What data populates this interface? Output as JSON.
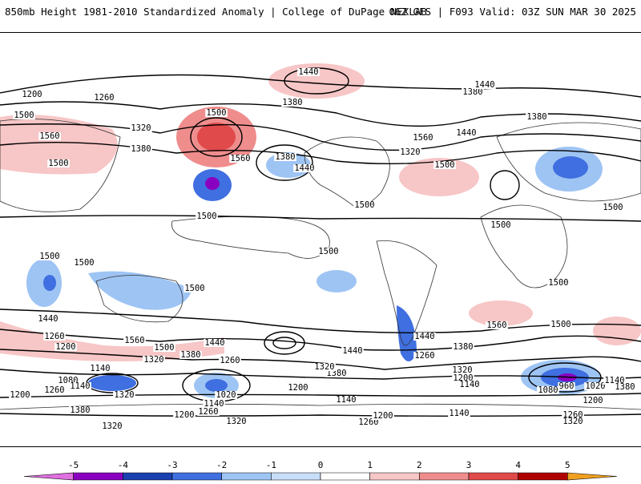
{
  "header": {
    "title": "850mb Height 1981-2010 Standardized Anomaly | College of DuPage NEXLAB",
    "run_info": "06Z GFS | F093 Valid: 03Z SUN MAR 30 2025"
  },
  "colorbar": {
    "ticks": [
      "-5",
      "-4",
      "-3",
      "-2",
      "-1",
      "0",
      "1",
      "2",
      "3",
      "4",
      "5"
    ],
    "colors": [
      "#e070e0",
      "#8a00c0",
      "#1a3fb0",
      "#3f6fe0",
      "#9ec4f4",
      "#c8def8",
      "#ffffff",
      "#f7c6c6",
      "#ef8d8d",
      "#e04a4a",
      "#b00000",
      "#f0a020"
    ]
  },
  "contour_labels": [
    {
      "text": "1200"
    },
    {
      "text": "1260"
    },
    {
      "text": "1440"
    },
    {
      "text": "1380"
    },
    {
      "text": "1500"
    },
    {
      "text": "1320"
    },
    {
      "text": "1560"
    },
    {
      "text": "1380"
    },
    {
      "text": "1500"
    },
    {
      "text": "1500"
    },
    {
      "text": "1560"
    },
    {
      "text": "1380"
    },
    {
      "text": "1440"
    },
    {
      "text": "1380"
    },
    {
      "text": "1440"
    },
    {
      "text": "1440"
    },
    {
      "text": "1320"
    },
    {
      "text": "1500"
    },
    {
      "text": "1560"
    },
    {
      "text": "1380"
    },
    {
      "text": "1500"
    },
    {
      "text": "1500"
    },
    {
      "text": "1500"
    },
    {
      "text": "1500"
    },
    {
      "text": "1500"
    },
    {
      "text": "1500"
    },
    {
      "text": "1500"
    },
    {
      "text": "1500"
    },
    {
      "text": "1500"
    },
    {
      "text": "1440"
    },
    {
      "text": "1260"
    },
    {
      "text": "1200"
    },
    {
      "text": "1560"
    },
    {
      "text": "1500"
    },
    {
      "text": "1380"
    },
    {
      "text": "1320"
    },
    {
      "text": "1440"
    },
    {
      "text": "1260"
    },
    {
      "text": "1440"
    },
    {
      "text": "1380"
    },
    {
      "text": "1320"
    },
    {
      "text": "1260"
    },
    {
      "text": "1560"
    },
    {
      "text": "1500"
    },
    {
      "text": "1440"
    },
    {
      "text": "1380"
    },
    {
      "text": "1320"
    },
    {
      "text": "1200"
    },
    {
      "text": "1140"
    },
    {
      "text": "1140"
    },
    {
      "text": "1080"
    },
    {
      "text": "1140"
    },
    {
      "text": "1260"
    },
    {
      "text": "1200"
    },
    {
      "text": "1320"
    },
    {
      "text": "1020"
    },
    {
      "text": "1140"
    },
    {
      "text": "1200"
    },
    {
      "text": "1260"
    },
    {
      "text": "1200"
    },
    {
      "text": "1140"
    },
    {
      "text": "1260"
    },
    {
      "text": "1200"
    },
    {
      "text": "1140"
    },
    {
      "text": "1380"
    },
    {
      "text": "1320"
    },
    {
      "text": "1320"
    },
    {
      "text": "1080"
    },
    {
      "text": "960"
    },
    {
      "text": "1020"
    },
    {
      "text": "1140"
    },
    {
      "text": "1200"
    },
    {
      "text": "1260"
    },
    {
      "text": "1320"
    },
    {
      "text": "1380"
    }
  ]
}
